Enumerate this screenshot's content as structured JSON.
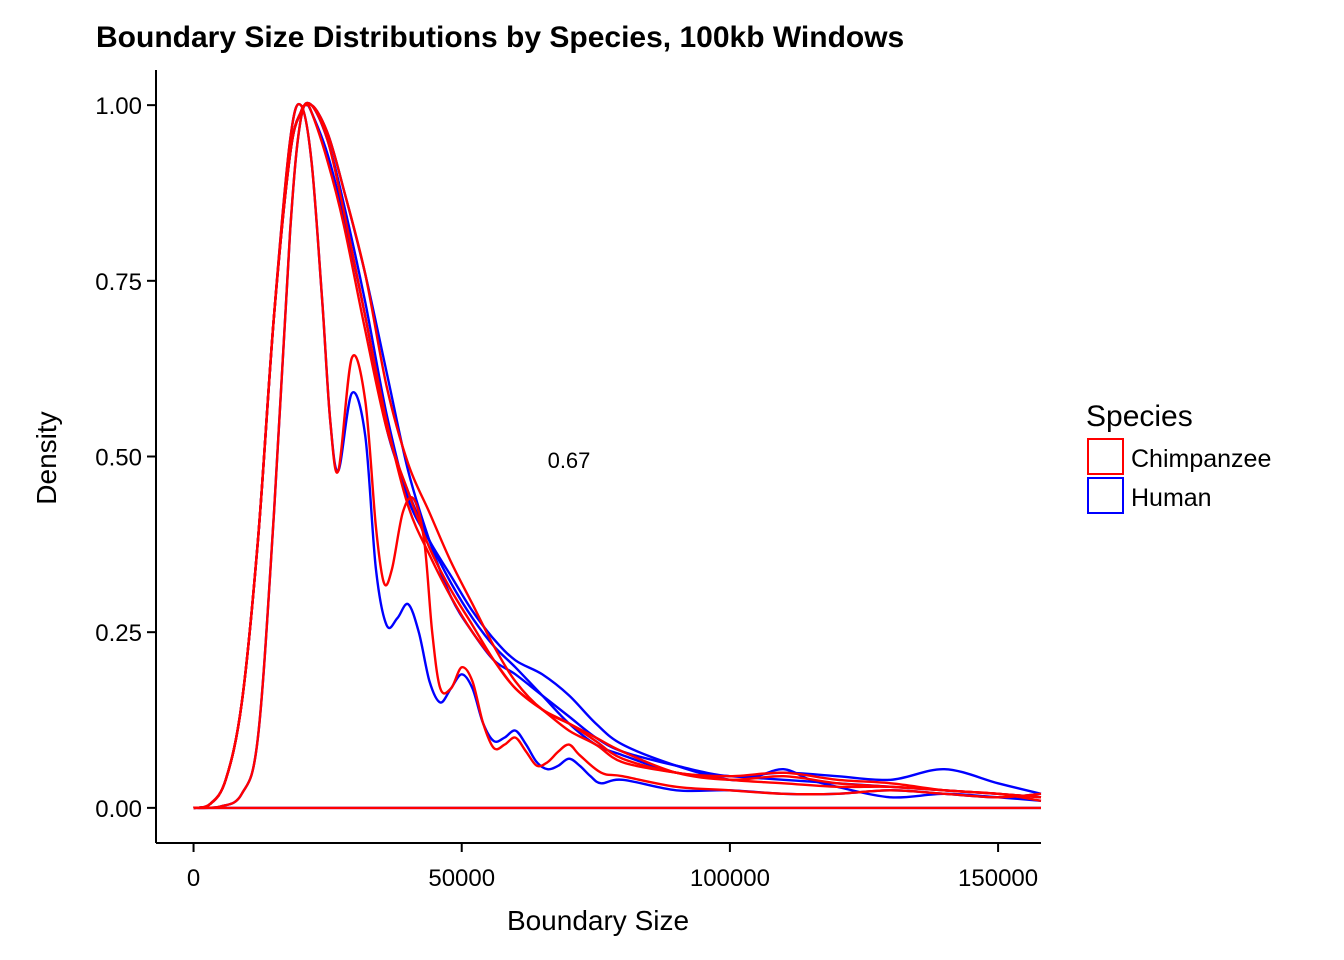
{
  "chart_data": {
    "type": "line",
    "title": "Boundary Size Distributions by Species, 100kb Windows",
    "xlabel": "Boundary Size",
    "ylabel": "Density",
    "xlim": [
      -7000,
      158000
    ],
    "ylim": [
      -0.05,
      1.05
    ],
    "x_ticks": [
      0,
      50000,
      100000,
      150000
    ],
    "x_tick_labels": [
      "0",
      "50000",
      "100000",
      "150000"
    ],
    "y_ticks": [
      0,
      0.25,
      0.5,
      0.75,
      1.0
    ],
    "y_tick_labels": [
      "0.00",
      "0.25",
      "0.50",
      "0.75",
      "1.00"
    ],
    "grid": false,
    "legend": {
      "title": "Species",
      "position": "right",
      "entries": [
        {
          "label": "Chimpanzee",
          "color": "#ff0000"
        },
        {
          "label": "Human",
          "color": "#0000ff"
        }
      ]
    },
    "annotations": [
      {
        "text": "0.67",
        "x": 70000,
        "y": 0.495
      }
    ],
    "series": [
      {
        "group": "Human",
        "color": "#0000ff",
        "x": [
          0,
          3000,
          6000,
          9000,
          12000,
          15000,
          18000,
          20000,
          21000,
          22000,
          25000,
          28000,
          32000,
          36000,
          40000,
          44000,
          48000,
          52000,
          56000,
          60000,
          65000,
          70000,
          75000,
          80000,
          90000,
          100000,
          110000,
          120000,
          130000,
          140000,
          150000,
          158000
        ],
        "y": [
          0,
          0.005,
          0.04,
          0.15,
          0.38,
          0.7,
          0.93,
          0.99,
          1.0,
          0.99,
          0.93,
          0.84,
          0.7,
          0.54,
          0.45,
          0.38,
          0.32,
          0.27,
          0.23,
          0.2,
          0.16,
          0.12,
          0.09,
          0.075,
          0.05,
          0.045,
          0.04,
          0.035,
          0.03,
          0.025,
          0.02,
          0.015
        ]
      },
      {
        "group": "Human",
        "color": "#0000ff",
        "x": [
          0,
          5000,
          9000,
          12000,
          15000,
          18000,
          20000,
          22000,
          25000,
          28000,
          32000,
          36000,
          40000,
          44000,
          48000,
          52000,
          56000,
          60000,
          65000,
          70000,
          75000,
          80000,
          90000,
          100000,
          110000,
          120000,
          130000,
          140000,
          150000,
          158000
        ],
        "y": [
          0,
          0.002,
          0.02,
          0.1,
          0.42,
          0.82,
          0.98,
          1.0,
          0.96,
          0.88,
          0.76,
          0.62,
          0.48,
          0.38,
          0.3,
          0.25,
          0.21,
          0.19,
          0.16,
          0.13,
          0.1,
          0.08,
          0.06,
          0.045,
          0.05,
          0.045,
          0.04,
          0.055,
          0.035,
          0.02
        ]
      },
      {
        "group": "Human",
        "color": "#0000ff",
        "x": [
          0,
          3000,
          6000,
          9000,
          12000,
          15000,
          18000,
          20000,
          22000,
          24000,
          25500,
          27000,
          29500,
          32000,
          34000,
          36000,
          38000,
          40000,
          42000,
          44000,
          46000,
          48000,
          50000,
          52000,
          54000,
          56000,
          58000,
          60000,
          62000,
          64000,
          66000,
          68000,
          70000,
          72000,
          74000,
          76000,
          80000,
          90000,
          100000,
          110000,
          120000,
          130000,
          140000,
          150000,
          158000
        ],
        "y": [
          0,
          0.005,
          0.04,
          0.15,
          0.38,
          0.7,
          0.95,
          1.0,
          0.92,
          0.72,
          0.55,
          0.48,
          0.59,
          0.53,
          0.34,
          0.26,
          0.27,
          0.29,
          0.25,
          0.18,
          0.15,
          0.17,
          0.19,
          0.17,
          0.12,
          0.095,
          0.1,
          0.11,
          0.09,
          0.065,
          0.055,
          0.06,
          0.07,
          0.06,
          0.045,
          0.035,
          0.04,
          0.025,
          0.025,
          0.02,
          0.02,
          0.025,
          0.02,
          0.015,
          0.02
        ]
      },
      {
        "group": "Human",
        "color": "#0000ff",
        "x": [
          0,
          3000,
          6000,
          9000,
          12000,
          15000,
          18000,
          20000,
          22000,
          25000,
          28000,
          32000,
          36000,
          40000,
          44000,
          48000,
          52000,
          56000,
          60000,
          65000,
          70000,
          75000,
          80000,
          90000,
          100000,
          105000,
          110000,
          115000,
          120000,
          130000,
          140000,
          150000,
          158000
        ],
        "y": [
          0,
          0.005,
          0.04,
          0.15,
          0.38,
          0.7,
          0.93,
          0.99,
          1.0,
          0.95,
          0.86,
          0.72,
          0.56,
          0.44,
          0.38,
          0.33,
          0.28,
          0.24,
          0.21,
          0.19,
          0.16,
          0.12,
          0.09,
          0.06,
          0.04,
          0.045,
          0.055,
          0.04,
          0.03,
          0.015,
          0.02,
          0.015,
          0.01
        ]
      },
      {
        "group": "Human",
        "color": "#0000ff",
        "x": [
          0,
          158000
        ],
        "y": [
          0,
          0
        ]
      },
      {
        "group": "Chimpanzee",
        "color": "#ff0000",
        "x": [
          0,
          3000,
          6000,
          9000,
          12000,
          15000,
          18000,
          20000,
          21000,
          22000,
          25000,
          28000,
          32000,
          36000,
          40000,
          44000,
          48000,
          52000,
          56000,
          60000,
          65000,
          70000,
          75000,
          80000,
          90000,
          100000,
          110000,
          120000,
          130000,
          140000,
          150000,
          158000
        ],
        "y": [
          0,
          0.005,
          0.04,
          0.15,
          0.38,
          0.7,
          0.93,
          0.99,
          1.0,
          0.99,
          0.92,
          0.83,
          0.68,
          0.54,
          0.45,
          0.37,
          0.31,
          0.26,
          0.21,
          0.17,
          0.14,
          0.11,
          0.09,
          0.065,
          0.05,
          0.04,
          0.035,
          0.03,
          0.03,
          0.025,
          0.02,
          0.015
        ]
      },
      {
        "group": "Chimpanzee",
        "color": "#ff0000",
        "x": [
          0,
          5000,
          9000,
          12000,
          15000,
          18000,
          20000,
          22000,
          25000,
          28000,
          32000,
          36000,
          40000,
          44000,
          48000,
          52000,
          56000,
          60000,
          65000,
          70000,
          75000,
          80000,
          90000,
          100000,
          110000,
          120000,
          130000,
          140000,
          150000,
          158000
        ],
        "y": [
          0,
          0.002,
          0.02,
          0.1,
          0.42,
          0.82,
          0.98,
          1.0,
          0.96,
          0.88,
          0.76,
          0.6,
          0.49,
          0.42,
          0.35,
          0.29,
          0.23,
          0.18,
          0.14,
          0.12,
          0.1,
          0.08,
          0.05,
          0.04,
          0.045,
          0.035,
          0.03,
          0.025,
          0.02,
          0.015
        ]
      },
      {
        "group": "Chimpanzee",
        "color": "#ff0000",
        "x": [
          0,
          3000,
          6000,
          9000,
          12000,
          15000,
          18000,
          20000,
          22000,
          24000,
          25500,
          27000,
          29500,
          32000,
          34000,
          35500,
          37000,
          39000,
          41000,
          43000,
          44500,
          46000,
          48000,
          50000,
          52000,
          54000,
          56000,
          58000,
          60000,
          62000,
          64000,
          66000,
          68000,
          70000,
          72000,
          76000,
          80000,
          90000,
          100000,
          110000,
          120000,
          130000,
          140000,
          150000,
          158000
        ],
        "y": [
          0,
          0.005,
          0.04,
          0.15,
          0.38,
          0.7,
          0.95,
          1.0,
          0.92,
          0.72,
          0.55,
          0.48,
          0.64,
          0.58,
          0.4,
          0.32,
          0.34,
          0.42,
          0.44,
          0.38,
          0.25,
          0.17,
          0.17,
          0.2,
          0.18,
          0.12,
          0.085,
          0.09,
          0.1,
          0.08,
          0.06,
          0.065,
          0.08,
          0.09,
          0.075,
          0.05,
          0.045,
          0.03,
          0.025,
          0.02,
          0.02,
          0.025,
          0.02,
          0.015,
          0.02
        ]
      },
      {
        "group": "Chimpanzee",
        "color": "#ff0000",
        "x": [
          0,
          3000,
          6000,
          9000,
          12000,
          15000,
          18000,
          20000,
          22000,
          25000,
          28000,
          32000,
          36000,
          40000,
          44000,
          48000,
          52000,
          56000,
          60000,
          65000,
          70000,
          75000,
          80000,
          90000,
          100000,
          110000,
          120000,
          130000,
          140000,
          150000,
          158000
        ],
        "y": [
          0,
          0.005,
          0.04,
          0.15,
          0.38,
          0.7,
          0.93,
          0.99,
          1.0,
          0.95,
          0.85,
          0.7,
          0.55,
          0.43,
          0.36,
          0.3,
          0.25,
          0.21,
          0.17,
          0.14,
          0.12,
          0.095,
          0.07,
          0.05,
          0.045,
          0.05,
          0.04,
          0.035,
          0.025,
          0.02,
          0.01
        ]
      },
      {
        "group": "Chimpanzee",
        "color": "#ff0000",
        "x": [
          0,
          158000
        ],
        "y": [
          0,
          0
        ]
      }
    ]
  }
}
